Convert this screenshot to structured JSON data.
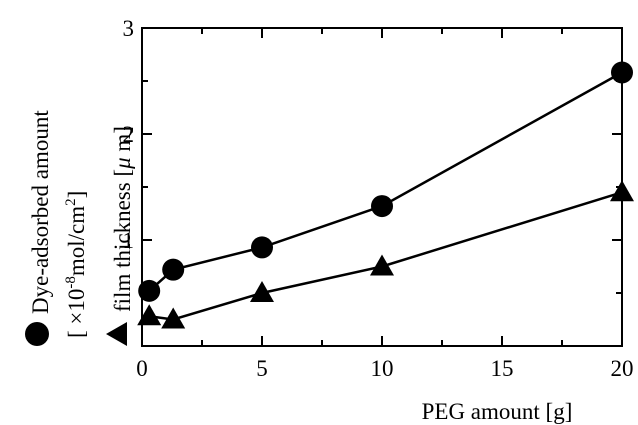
{
  "chart_data": {
    "type": "line",
    "xlabel": "PEG amount [g]",
    "ylabel_lines": [
      {
        "symbol": "●",
        "text": "Dye-adsorbed amount"
      },
      {
        "text_pre": "[ ×10",
        "sup1": "-8",
        "text_mid": "mol/cm",
        "sup2": "2",
        "text_post": "]"
      },
      {
        "symbol": "▲",
        "text_pre": "film thickness [",
        "greek": "μ",
        "text_post": " m]"
      }
    ],
    "xlim": [
      0,
      20
    ],
    "ylim": [
      0,
      3
    ],
    "xticks": [
      "0",
      "5",
      "10",
      "15",
      "20"
    ],
    "yticks": [
      "1",
      "2",
      "3"
    ],
    "grid": false,
    "series": [
      {
        "marker": "circle",
        "x": [
          0.3,
          1.3,
          5,
          10,
          20
        ],
        "y": [
          0.52,
          0.72,
          0.93,
          1.32,
          2.58
        ]
      },
      {
        "marker": "triangle",
        "x": [
          0.3,
          1.3,
          5,
          10,
          20
        ],
        "y": [
          0.28,
          0.25,
          0.5,
          0.75,
          1.45
        ]
      }
    ]
  }
}
